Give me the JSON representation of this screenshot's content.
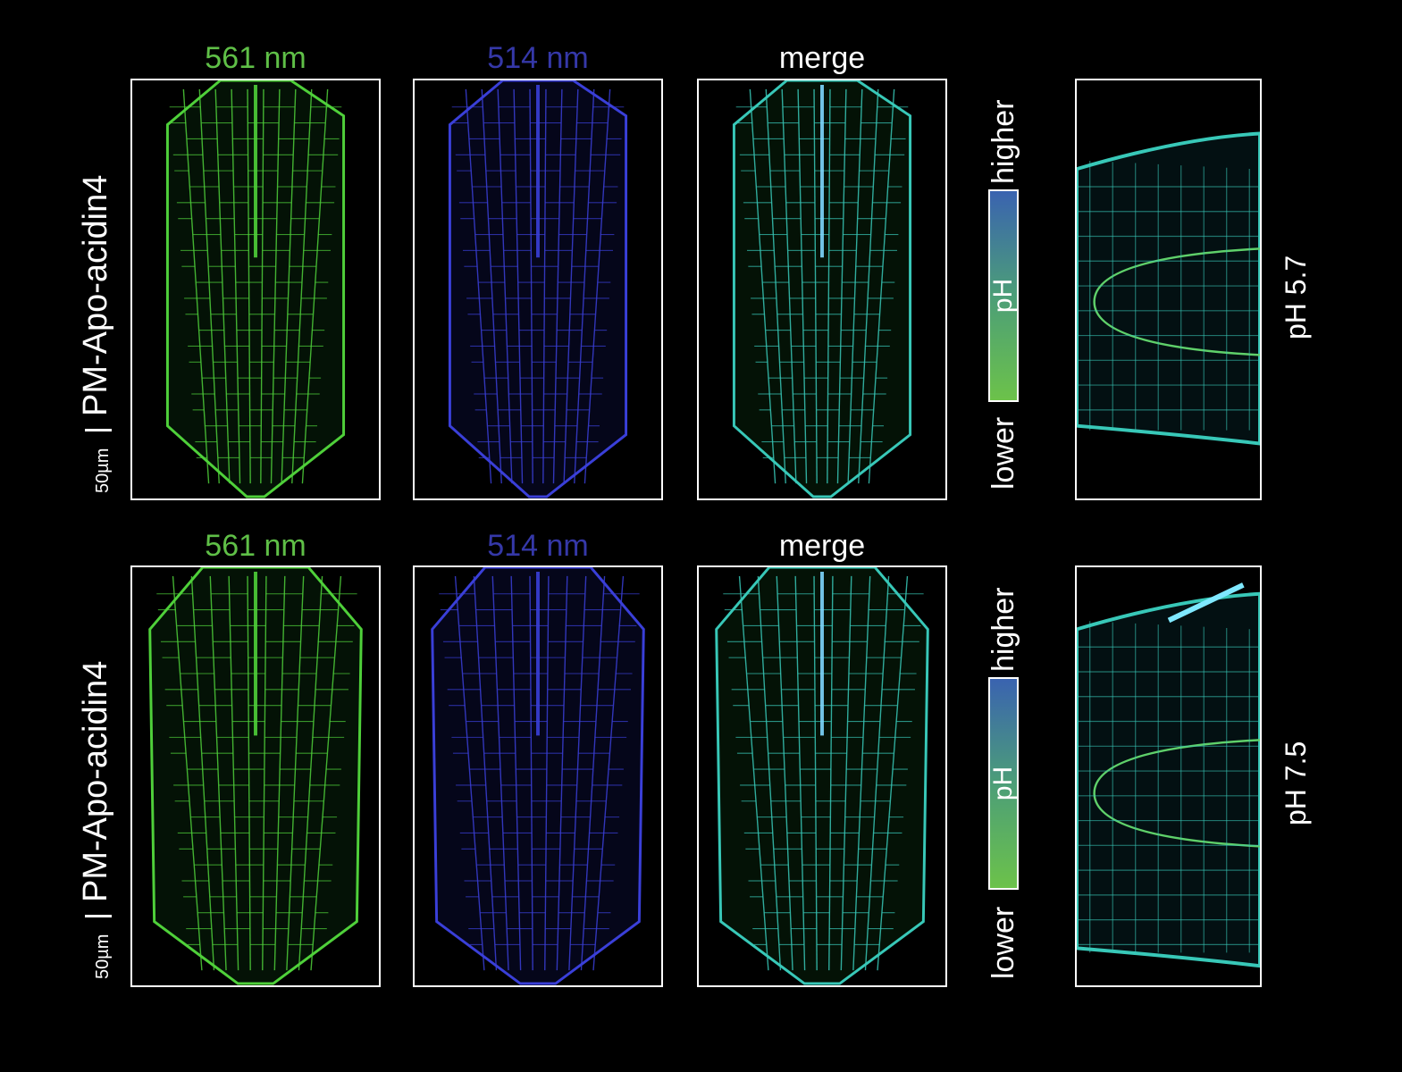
{
  "rows": [
    {
      "sample_label": "PM-Apo-acidin4",
      "scale_bar_label": "50µm",
      "panels": [
        {
          "label": "561 nm",
          "label_color": "#5fbf47",
          "channel": "green"
        },
        {
          "label": "514 nm",
          "label_color": "#3538a8",
          "channel": "blue"
        },
        {
          "label": "merge",
          "label_color": "#ffffff",
          "channel": "merge"
        }
      ],
      "colorbar": {
        "higher": "higher",
        "lower": "lower",
        "center": "pH"
      },
      "condition_label": "pH 5.7"
    },
    {
      "sample_label": "PM-Apo-acidin4",
      "scale_bar_label": "50µm",
      "panels": [
        {
          "label": "561 nm",
          "label_color": "#5fbf47",
          "channel": "green"
        },
        {
          "label": "514 nm",
          "label_color": "#3538a8",
          "channel": "blue"
        },
        {
          "label": "merge",
          "label_color": "#ffffff",
          "channel": "merge"
        }
      ],
      "colorbar": {
        "higher": "higher",
        "lower": "lower",
        "center": "pH"
      },
      "condition_label": "pH 7.5"
    }
  ],
  "colors": {
    "green_channel": "#4fd03a",
    "blue_channel": "#3a3fd8",
    "merge_channel": "#38c8b8",
    "colorbar_low": "#6cc24a",
    "colorbar_high": "#3a63b0"
  }
}
